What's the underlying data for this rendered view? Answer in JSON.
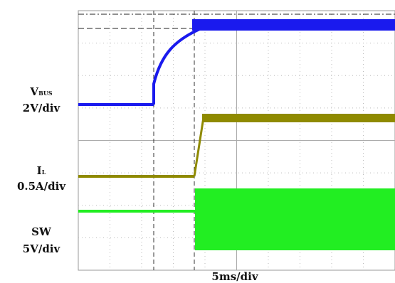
{
  "channels": [
    {
      "name": "V",
      "sub": "BUS",
      "scale": "2V/div"
    },
    {
      "name": "I",
      "sub": "L",
      "scale": "0.5A/div"
    },
    {
      "name": "SW",
      "scale": "5V/div"
    }
  ],
  "timebase": "5ms/div"
}
